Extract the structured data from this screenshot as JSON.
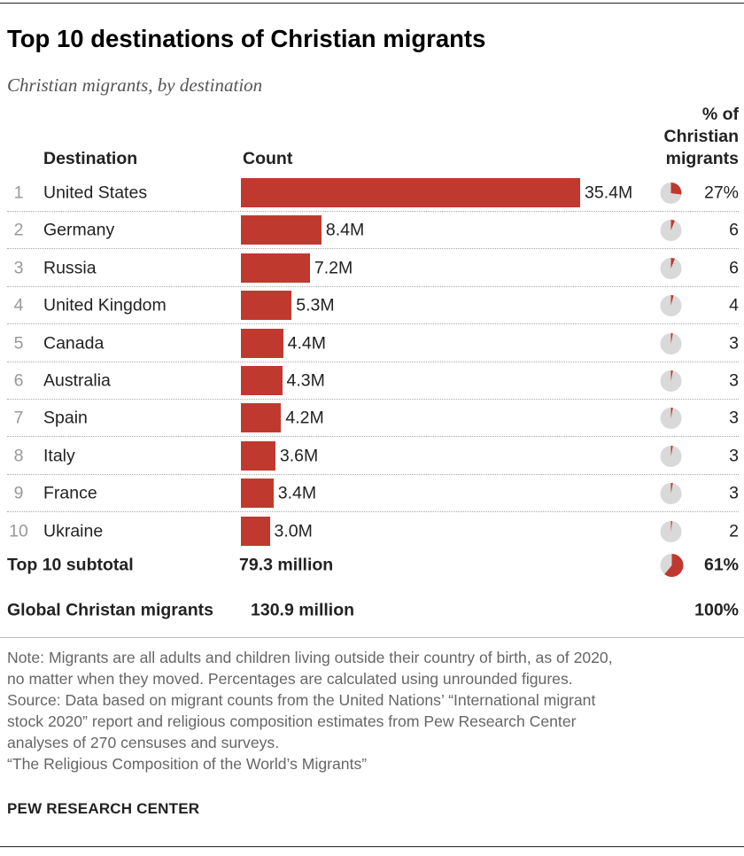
{
  "title": "Top 10 destinations of Christian migrants",
  "subtitle": "Christian migrants, by destination",
  "headers": {
    "destination": "Destination",
    "count": "Count",
    "pct_lines": [
      "% of",
      "Christian",
      "migrants"
    ]
  },
  "colors": {
    "bar": "#c0392f",
    "pie_bg": "#d9d9d9",
    "pie_fill": "#c0392f"
  },
  "chart_data": {
    "type": "bar",
    "orientation": "horizontal",
    "title": "Top 10 destinations of Christian migrants",
    "subtitle": "Christian migrants, by destination",
    "xlabel": "Count",
    "ylabel": "Destination",
    "unit": "millions",
    "xlim": [
      0,
      35.4
    ],
    "categories": [
      "United States",
      "Germany",
      "Russia",
      "United Kingdom",
      "Canada",
      "Australia",
      "Spain",
      "Italy",
      "France",
      "Ukraine"
    ],
    "values": [
      35.4,
      8.4,
      7.2,
      5.3,
      4.4,
      4.3,
      4.2,
      3.6,
      3.4,
      3.0
    ],
    "rows": [
      {
        "rank": "1",
        "country": "United States",
        "value": 35.4,
        "label": "35.4M",
        "pct": 27,
        "pct_label": "27%"
      },
      {
        "rank": "2",
        "country": "Germany",
        "value": 8.4,
        "label": "8.4M",
        "pct": 6,
        "pct_label": "6"
      },
      {
        "rank": "3",
        "country": "Russia",
        "value": 7.2,
        "label": "7.2M",
        "pct": 6,
        "pct_label": "6"
      },
      {
        "rank": "4",
        "country": "United Kingdom",
        "value": 5.3,
        "label": "5.3M",
        "pct": 4,
        "pct_label": "4"
      },
      {
        "rank": "5",
        "country": "Canada",
        "value": 4.4,
        "label": "4.4M",
        "pct": 3,
        "pct_label": "3"
      },
      {
        "rank": "6",
        "country": "Australia",
        "value": 4.3,
        "label": "4.3M",
        "pct": 3,
        "pct_label": "3"
      },
      {
        "rank": "7",
        "country": "Spain",
        "value": 4.2,
        "label": "4.2M",
        "pct": 3,
        "pct_label": "3"
      },
      {
        "rank": "8",
        "country": "Italy",
        "value": 3.6,
        "label": "3.6M",
        "pct": 3,
        "pct_label": "3"
      },
      {
        "rank": "9",
        "country": "France",
        "value": 3.4,
        "label": "3.4M",
        "pct": 3,
        "pct_label": "3"
      },
      {
        "rank": "10",
        "country": "Ukraine",
        "value": 3.0,
        "label": "3.0M",
        "pct": 2,
        "pct_label": "2"
      }
    ],
    "subtotal": {
      "label": "Top 10 subtotal",
      "value_label": "79.3 million",
      "pct": 61,
      "pct_label": "61%"
    },
    "global": {
      "label": "Global Christan migrants",
      "value_label": "130.9 million",
      "pct_label": "100%"
    }
  },
  "notes": [
    "Note: Migrants are all adults and children living outside their country of birth, as of 2020,",
    "no matter when they moved. Percentages are calculated using unrounded figures.",
    "Source: Data based on migrant counts from the United Nations’ “International migrant",
    "stock 2020” report and religious composition estimates from Pew Research Center",
    "analyses of 270 censuses and surveys.",
    "“The Religious Composition of the World’s Migrants”"
  ],
  "brand": "PEW RESEARCH CENTER"
}
